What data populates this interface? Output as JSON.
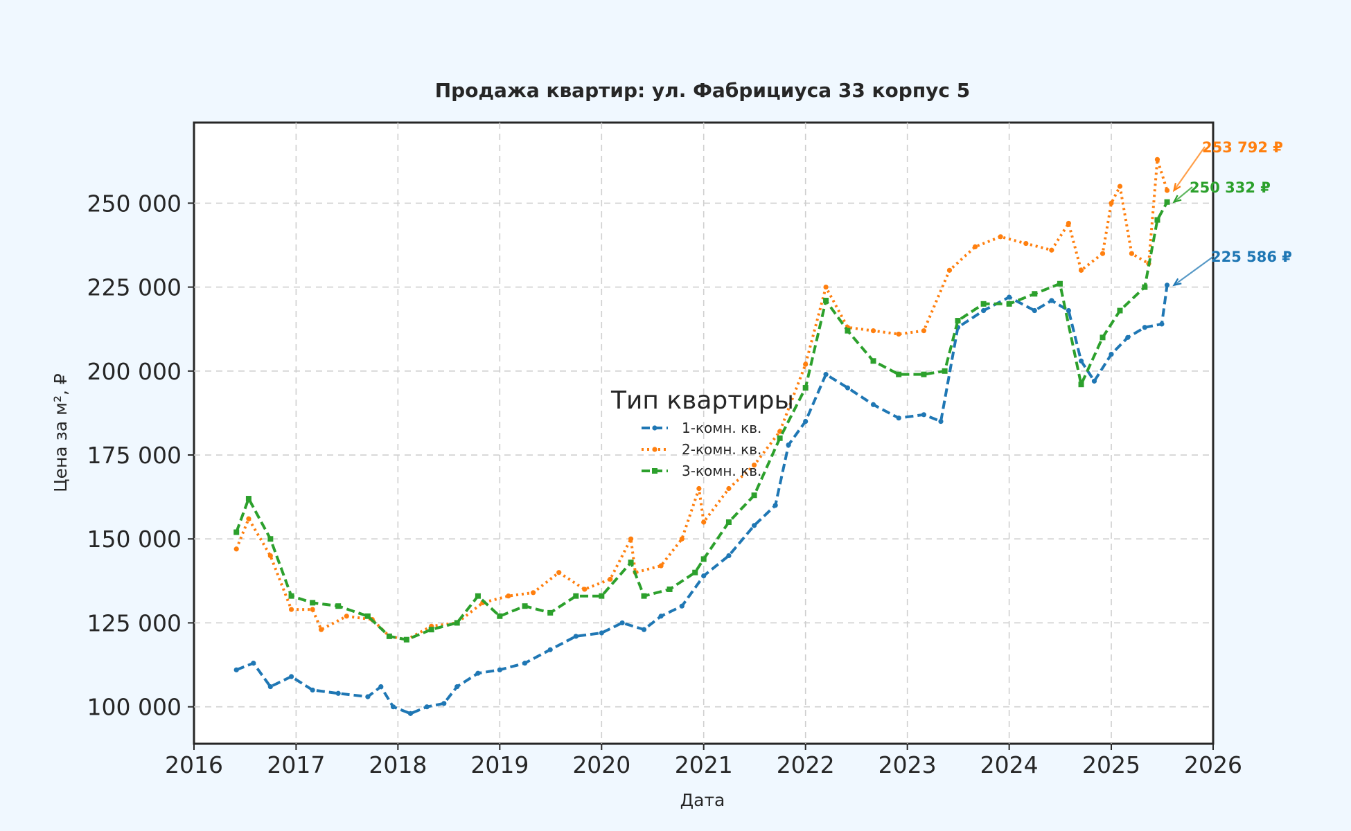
{
  "chart_data": {
    "type": "line",
    "title": "Продажа квартир: ул. Фабрициуса 33 корпус 5",
    "xlabel": "Дата",
    "ylabel": "Цена за м², ₽",
    "xlim": [
      "2016-01-01",
      "2026-01-01"
    ],
    "ylim": [
      89000,
      274000
    ],
    "x_ticks": [
      "2016",
      "2017",
      "2018",
      "2019",
      "2020",
      "2021",
      "2022",
      "2023",
      "2024",
      "2025",
      "2026"
    ],
    "y_ticks": [
      100000,
      125000,
      150000,
      175000,
      200000,
      225000,
      250000
    ],
    "y_tick_labels": [
      "100 000",
      "125 000",
      "150 000",
      "175 000",
      "200 000",
      "225 000",
      "250 000"
    ],
    "grid": true,
    "legend": {
      "title": "Тип квартиры",
      "placement": "center",
      "entries": [
        "1-комн. кв.",
        "2-комн. кв.",
        "3-комн. кв."
      ]
    },
    "series": [
      {
        "name": "1-комн. кв.",
        "color": "#1f77b4",
        "line_style": "dashed",
        "marker": "circle",
        "end_label": "225 586 ₽",
        "points": [
          [
            "2016-06-01",
            111000
          ],
          [
            "2016-08-01",
            113000
          ],
          [
            "2016-10-01",
            106000
          ],
          [
            "2016-12-15",
            109000
          ],
          [
            "2017-03-01",
            105000
          ],
          [
            "2017-06-01",
            104000
          ],
          [
            "2017-09-15",
            103000
          ],
          [
            "2017-11-01",
            106000
          ],
          [
            "2017-12-15",
            100000
          ],
          [
            "2018-02-15",
            98000
          ],
          [
            "2018-04-15",
            100000
          ],
          [
            "2018-06-15",
            101000
          ],
          [
            "2018-08-01",
            106000
          ],
          [
            "2018-10-15",
            110000
          ],
          [
            "2019-01-01",
            111000
          ],
          [
            "2019-04-01",
            113000
          ],
          [
            "2019-07-01",
            117000
          ],
          [
            "2019-10-01",
            121000
          ],
          [
            "2020-01-01",
            122000
          ],
          [
            "2020-03-15",
            125000
          ],
          [
            "2020-06-01",
            123000
          ],
          [
            "2020-08-01",
            127000
          ],
          [
            "2020-10-15",
            130000
          ],
          [
            "2021-01-01",
            139000
          ],
          [
            "2021-04-01",
            145000
          ],
          [
            "2021-07-01",
            154000
          ],
          [
            "2021-09-15",
            160000
          ],
          [
            "2021-11-01",
            178000
          ],
          [
            "2022-01-01",
            185000
          ],
          [
            "2022-03-15",
            199000
          ],
          [
            "2022-06-01",
            195000
          ],
          [
            "2022-09-01",
            190000
          ],
          [
            "2022-12-01",
            186000
          ],
          [
            "2023-03-01",
            187000
          ],
          [
            "2023-05-01",
            185000
          ],
          [
            "2023-07-01",
            213000
          ],
          [
            "2023-10-01",
            218000
          ],
          [
            "2024-01-01",
            222000
          ],
          [
            "2024-04-01",
            218000
          ],
          [
            "2024-06-01",
            221000
          ],
          [
            "2024-08-01",
            218000
          ],
          [
            "2024-09-15",
            203000
          ],
          [
            "2024-11-01",
            197000
          ],
          [
            "2025-01-01",
            205000
          ],
          [
            "2025-03-01",
            210000
          ],
          [
            "2025-05-01",
            213000
          ],
          [
            "2025-07-01",
            214000
          ],
          [
            "2025-07-20",
            225586
          ]
        ]
      },
      {
        "name": "2-комн. кв.",
        "color": "#ff7f0e",
        "line_style": "dotted",
        "marker": "circle",
        "end_label": "253 792 ₽",
        "points": [
          [
            "2016-06-01",
            147000
          ],
          [
            "2016-07-15",
            156000
          ],
          [
            "2016-10-01",
            145000
          ],
          [
            "2016-12-15",
            129000
          ],
          [
            "2017-03-01",
            129000
          ],
          [
            "2017-04-01",
            123000
          ],
          [
            "2017-07-01",
            127000
          ],
          [
            "2017-10-01",
            126000
          ],
          [
            "2017-12-01",
            121000
          ],
          [
            "2018-02-01",
            120000
          ],
          [
            "2018-05-01",
            124000
          ],
          [
            "2018-08-01",
            125000
          ],
          [
            "2018-11-01",
            131000
          ],
          [
            "2019-02-01",
            133000
          ],
          [
            "2019-05-01",
            134000
          ],
          [
            "2019-08-01",
            140000
          ],
          [
            "2019-11-01",
            135000
          ],
          [
            "2020-02-01",
            138000
          ],
          [
            "2020-04-15",
            150000
          ],
          [
            "2020-05-01",
            140000
          ],
          [
            "2020-08-01",
            142000
          ],
          [
            "2020-10-15",
            150000
          ],
          [
            "2020-12-15",
            165000
          ],
          [
            "2021-01-01",
            155000
          ],
          [
            "2021-04-01",
            165000
          ],
          [
            "2021-07-01",
            172000
          ],
          [
            "2021-10-01",
            182000
          ],
          [
            "2022-01-01",
            202000
          ],
          [
            "2022-03-15",
            225000
          ],
          [
            "2022-06-01",
            213000
          ],
          [
            "2022-09-01",
            212000
          ],
          [
            "2022-12-01",
            211000
          ],
          [
            "2023-03-01",
            212000
          ],
          [
            "2023-06-01",
            230000
          ],
          [
            "2023-09-01",
            237000
          ],
          [
            "2023-12-01",
            240000
          ],
          [
            "2024-03-01",
            238000
          ],
          [
            "2024-06-01",
            236000
          ],
          [
            "2024-08-01",
            244000
          ],
          [
            "2024-09-15",
            230000
          ],
          [
            "2024-12-01",
            235000
          ],
          [
            "2025-01-01",
            250000
          ],
          [
            "2025-02-01",
            255000
          ],
          [
            "2025-03-15",
            235000
          ],
          [
            "2025-05-15",
            232000
          ],
          [
            "2025-06-15",
            263000
          ],
          [
            "2025-07-20",
            253792
          ]
        ]
      },
      {
        "name": "3-комн. кв.",
        "color": "#2ca02c",
        "line_style": "dashed",
        "marker": "square",
        "end_label": "250 332 ₽",
        "points": [
          [
            "2016-06-01",
            152000
          ],
          [
            "2016-07-15",
            162000
          ],
          [
            "2016-10-01",
            150000
          ],
          [
            "2016-12-15",
            133000
          ],
          [
            "2017-03-01",
            131000
          ],
          [
            "2017-06-01",
            130000
          ],
          [
            "2017-09-15",
            127000
          ],
          [
            "2017-12-01",
            121000
          ],
          [
            "2018-02-01",
            120000
          ],
          [
            "2018-05-01",
            123000
          ],
          [
            "2018-08-01",
            125000
          ],
          [
            "2018-10-15",
            133000
          ],
          [
            "2019-01-01",
            127000
          ],
          [
            "2019-04-01",
            130000
          ],
          [
            "2019-07-01",
            128000
          ],
          [
            "2019-10-01",
            133000
          ],
          [
            "2020-01-01",
            133000
          ],
          [
            "2020-04-15",
            143000
          ],
          [
            "2020-06-01",
            133000
          ],
          [
            "2020-09-01",
            135000
          ],
          [
            "2020-12-01",
            140000
          ],
          [
            "2021-01-01",
            144000
          ],
          [
            "2021-04-01",
            155000
          ],
          [
            "2021-07-01",
            163000
          ],
          [
            "2021-10-01",
            180000
          ],
          [
            "2022-01-01",
            195000
          ],
          [
            "2022-03-15",
            221000
          ],
          [
            "2022-06-01",
            212000
          ],
          [
            "2022-09-01",
            203000
          ],
          [
            "2022-12-01",
            199000
          ],
          [
            "2023-03-01",
            199000
          ],
          [
            "2023-05-15",
            200000
          ],
          [
            "2023-07-01",
            215000
          ],
          [
            "2023-10-01",
            220000
          ],
          [
            "2024-01-01",
            220000
          ],
          [
            "2024-04-01",
            223000
          ],
          [
            "2024-07-01",
            226000
          ],
          [
            "2024-09-15",
            196000
          ],
          [
            "2024-12-01",
            210000
          ],
          [
            "2025-02-01",
            218000
          ],
          [
            "2025-05-01",
            225000
          ],
          [
            "2025-06-15",
            245000
          ],
          [
            "2025-07-20",
            250332
          ]
        ]
      }
    ]
  }
}
